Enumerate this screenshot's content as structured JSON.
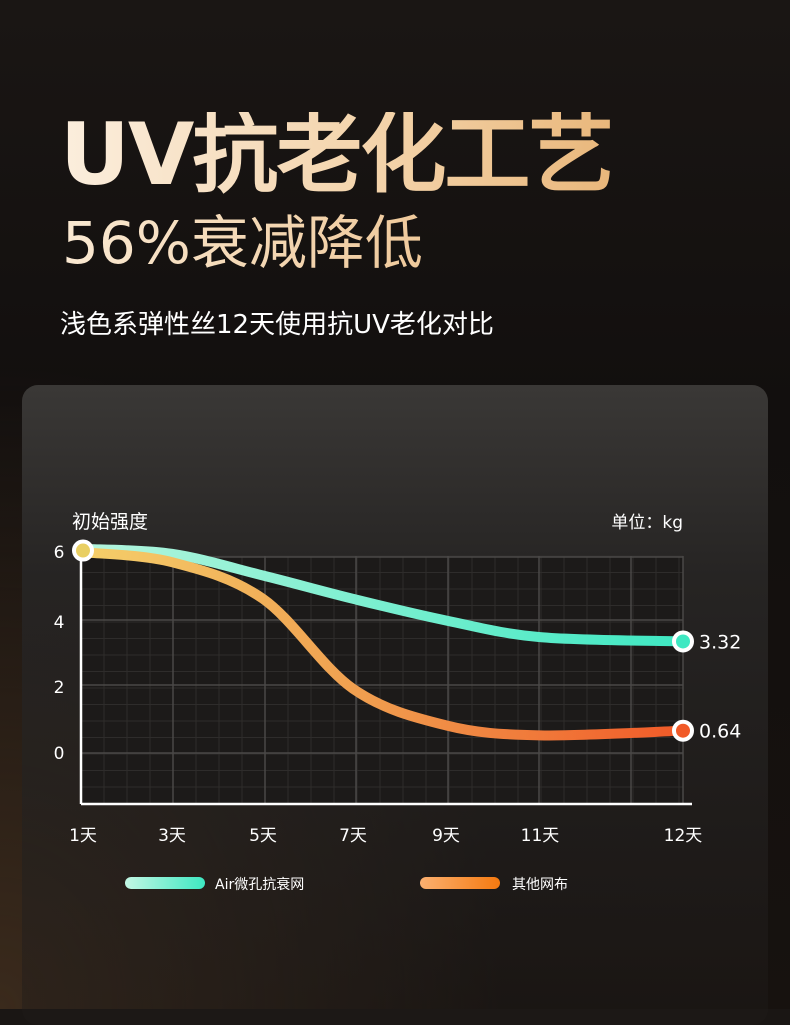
{
  "header": {
    "title": "UV抗老化工艺",
    "subtitle": "56%衰减降低",
    "description": "浅色系弹性丝12天使用抗UV老化对比"
  },
  "chart_data": {
    "type": "line",
    "ylabel": "初始强度",
    "unit_label": "单位：kg",
    "categories": [
      "1天",
      "3天",
      "5天",
      "7天",
      "9天",
      "11天",
      "12天"
    ],
    "yticks": [
      6,
      4,
      2,
      0
    ],
    "ylim": [
      -1.5,
      6
    ],
    "grid": true,
    "legend_placement": "bottom",
    "series": [
      {
        "name": "Air微孔抗衰网",
        "values": [
          6.1,
          5.95,
          5.3,
          4.6,
          3.95,
          3.45,
          3.32
        ],
        "end_label": "3.32",
        "colors": [
          "#b4f5dd",
          "#3ee8c2"
        ]
      },
      {
        "name": "其他网布",
        "values": [
          6.0,
          5.7,
          4.6,
          1.9,
          0.8,
          0.5,
          0.64
        ],
        "end_label": "0.64",
        "colors": [
          "#f5cf6a",
          "#f15a28"
        ]
      }
    ]
  }
}
